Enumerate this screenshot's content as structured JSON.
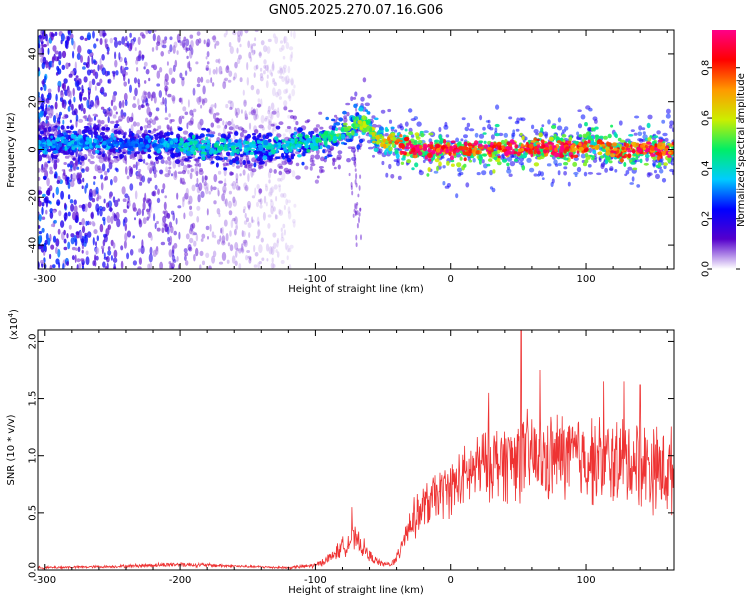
{
  "page_title": "GN05.2025.270.07.16.G06",
  "colors": {
    "snr_line": "#ee3333",
    "axis": "#000000",
    "spectrogram_background": "#ffffff"
  },
  "chart_data": [
    {
      "type": "heatmap",
      "title": "GN05.2025.270.07.16.G06",
      "xlabel": "Height of straight line (km)",
      "ylabel": "Frequency (Hz)",
      "xlim": [
        -305,
        165
      ],
      "ylim": [
        -50,
        50
      ],
      "x_ticks": [
        -300,
        -200,
        -100,
        0,
        100
      ],
      "x_tick_labels": [
        "-300",
        "-200",
        "-100",
        "0",
        "100"
      ],
      "y_ticks": [
        -40,
        -20,
        0,
        20,
        40
      ],
      "y_tick_labels": [
        "-40",
        "-20",
        "0",
        "20",
        "40"
      ],
      "ridge": {
        "x": [
          -305,
          -260,
          -230,
          -200,
          -180,
          -160,
          -140,
          -120,
          -100,
          -90,
          -80,
          -70,
          -62,
          -55,
          -45,
          -35,
          -20,
          0,
          20,
          40,
          60,
          80,
          100,
          108,
          120,
          140,
          165
        ],
        "frequency": [
          2,
          3,
          2,
          2,
          0,
          1,
          1,
          2,
          3,
          5,
          7,
          10,
          11,
          5,
          3,
          2,
          0,
          0,
          0,
          0,
          1,
          0,
          1,
          3,
          -1,
          0,
          0
        ],
        "amplitude": [
          0.35,
          0.35,
          0.3,
          0.4,
          0.45,
          0.42,
          0.4,
          0.42,
          0.45,
          0.48,
          0.5,
          0.55,
          0.6,
          0.62,
          0.7,
          0.85,
          0.95,
          0.95,
          0.9,
          0.92,
          0.9,
          0.92,
          0.9,
          0.75,
          0.85,
          0.9,
          0.9
        ]
      },
      "noise_region": {
        "xlim": [
          -305,
          -115
        ],
        "frequency_range": [
          -50,
          50
        ]
      },
      "colorbar": {
        "label": "Normalized spectral amplitude",
        "range": [
          0.0,
          0.95
        ],
        "ticks": [
          0.0,
          0.2,
          0.4,
          0.6,
          0.8
        ],
        "tick_labels": [
          "0.0",
          "0.2",
          "0.4",
          "0.6",
          "0.8"
        ],
        "colormap": [
          "#ffffff",
          "#5500cc",
          "#0000ff",
          "#00ccff",
          "#00ee66",
          "#ccee00",
          "#ff9900",
          "#ff0000",
          "#ff0088"
        ]
      }
    },
    {
      "type": "line",
      "title": "",
      "xlabel": "Height of straight line (km)",
      "ylabel": "SNR (10 * v/v)",
      "scale_label": "(x10",
      "scale_exponent": "4",
      "scale_close": ")",
      "xlim": [
        -305,
        165
      ],
      "ylim": [
        0.0,
        2.1
      ],
      "x_ticks": [
        -300,
        -200,
        -100,
        0,
        100
      ],
      "x_tick_labels": [
        "-300",
        "-200",
        "-100",
        "0",
        "100"
      ],
      "y_ticks": [
        0.0,
        0.5,
        1.0,
        1.5,
        2.0
      ],
      "y_tick_labels": [
        "0.0",
        "0.5",
        "1.0",
        "1.5",
        "2.0"
      ],
      "series": [
        {
          "name": "SNR",
          "envelope_x": [
            -305,
            -250,
            -200,
            -150,
            -120,
            -100,
            -90,
            -80,
            -72,
            -65,
            -60,
            -55,
            -50,
            -45,
            -40,
            -35,
            -30,
            -20,
            -10,
            0,
            10,
            20,
            30,
            40,
            50,
            60,
            70,
            80,
            90,
            100,
            110,
            120,
            130,
            140,
            150,
            160,
            165
          ],
          "envelope_mean": [
            0.02,
            0.03,
            0.05,
            0.03,
            0.02,
            0.04,
            0.1,
            0.2,
            0.28,
            0.2,
            0.12,
            0.08,
            0.05,
            0.05,
            0.08,
            0.3,
            0.4,
            0.55,
            0.65,
            0.72,
            0.8,
            0.9,
            0.95,
            0.95,
            0.98,
            1.0,
            0.95,
            1.0,
            1.0,
            0.98,
            0.95,
            0.95,
            0.95,
            0.95,
            0.9,
            0.85,
            0.85
          ],
          "envelope_spread": [
            0.01,
            0.01,
            0.02,
            0.01,
            0.01,
            0.02,
            0.04,
            0.08,
            0.1,
            0.08,
            0.05,
            0.03,
            0.02,
            0.02,
            0.05,
            0.12,
            0.15,
            0.18,
            0.2,
            0.22,
            0.25,
            0.28,
            0.3,
            0.32,
            0.35,
            0.35,
            0.35,
            0.35,
            0.35,
            0.35,
            0.35,
            0.35,
            0.35,
            0.35,
            0.35,
            0.35,
            0.35
          ],
          "peaks": [
            {
              "x": 52,
              "y": 2.1
            },
            {
              "x": 66,
              "y": 1.75
            },
            {
              "x": 28,
              "y": 1.55
            },
            {
              "x": 113,
              "y": 1.65
            },
            {
              "x": 128,
              "y": 1.65
            },
            {
              "x": 140,
              "y": 1.62
            },
            {
              "x": -73,
              "y": 0.55
            }
          ]
        }
      ]
    }
  ]
}
